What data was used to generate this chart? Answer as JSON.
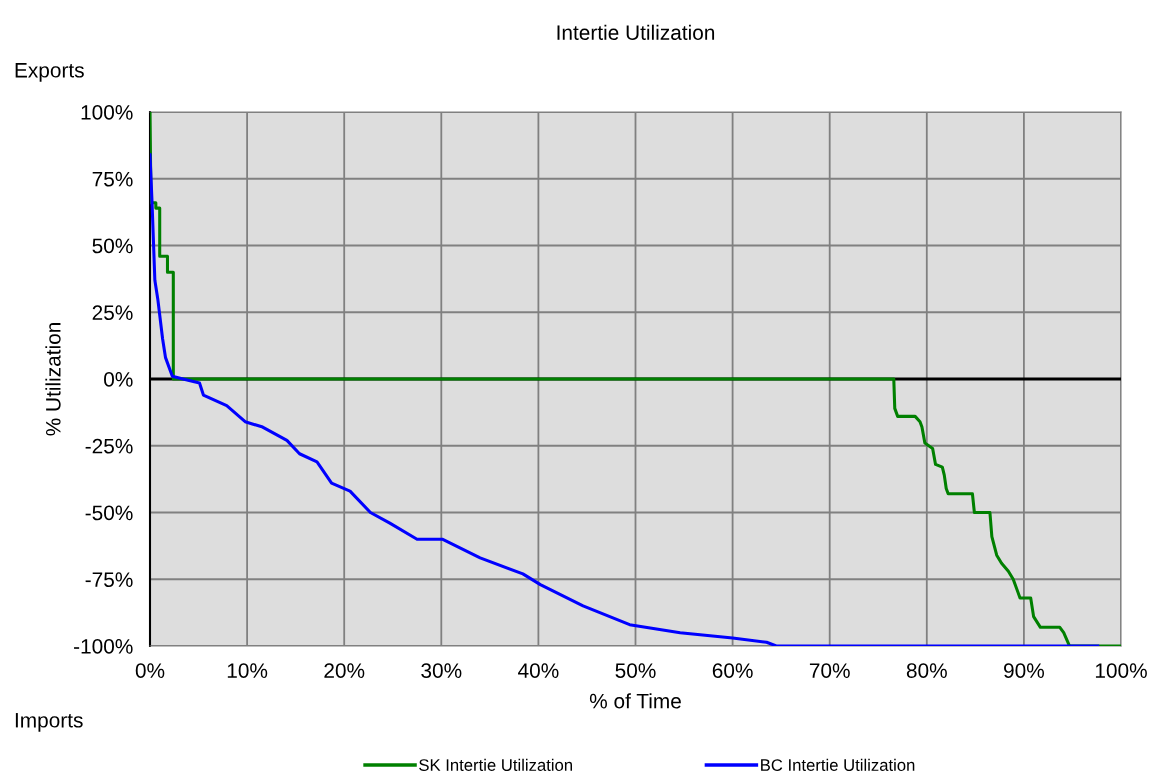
{
  "chart_data": {
    "type": "line",
    "title": "Intertie Utilization",
    "xlabel": "% of Time",
    "ylabel": "% Utilization",
    "annotations": [
      "Exports",
      "Imports"
    ],
    "xlim": [
      0,
      100
    ],
    "ylim": [
      -100,
      100
    ],
    "xticks": [
      {
        "value": 0,
        "label": "0%"
      },
      {
        "value": 10,
        "label": "10%"
      },
      {
        "value": 20,
        "label": "20%"
      },
      {
        "value": 30,
        "label": "30%"
      },
      {
        "value": 40,
        "label": "40%"
      },
      {
        "value": 50,
        "label": "50%"
      },
      {
        "value": 60,
        "label": "60%"
      },
      {
        "value": 70,
        "label": "70%"
      },
      {
        "value": 80,
        "label": "80%"
      },
      {
        "value": 90,
        "label": "90%"
      },
      {
        "value": 100,
        "label": "100%"
      }
    ],
    "yticks": [
      {
        "value": -100,
        "label": "-100%"
      },
      {
        "value": -75,
        "label": "-75%"
      },
      {
        "value": -50,
        "label": "-50%"
      },
      {
        "value": -25,
        "label": "-25%"
      },
      {
        "value": 0,
        "label": "0%"
      },
      {
        "value": 25,
        "label": "25%"
      },
      {
        "value": 50,
        "label": "50%"
      },
      {
        "value": 75,
        "label": "75%"
      },
      {
        "value": 100,
        "label": "100%"
      }
    ],
    "grid": true,
    "legend": "bottom",
    "ref_lines": [
      {
        "axis": "y",
        "value": 0,
        "color": "#000000"
      }
    ],
    "series": [
      {
        "name": "SK Intertie Utilization",
        "color": "#008000",
        "x": [
          0,
          0.1,
          0.6,
          0.6,
          1.0,
          1.0,
          1.8,
          1.8,
          2.4,
          2.4,
          76.6,
          76.7,
          77.0,
          78.8,
          79.3,
          79.5,
          79.8,
          80.6,
          80.9,
          81.6,
          81.8,
          82.0,
          82.2,
          84.7,
          84.9,
          86.5,
          86.7,
          87.2,
          87.7,
          88.4,
          88.9,
          89.6,
          90.7,
          91.0,
          91.7,
          93.7,
          94.1,
          94.7,
          100
        ],
        "values": [
          100,
          66,
          66,
          64,
          64,
          46,
          46,
          40,
          40,
          0,
          0,
          -11,
          -14,
          -14,
          -16,
          -18,
          -24,
          -26,
          -32,
          -33,
          -36,
          -41,
          -43,
          -43,
          -50,
          -50,
          -59,
          -66,
          -69,
          -72,
          -75,
          -82,
          -82,
          -89,
          -93,
          -93,
          -95,
          -100,
          -100
        ]
      },
      {
        "name": "BC Intertie Utilization",
        "color": "#0000ff",
        "x": [
          0,
          0.2,
          0.5,
          0.8,
          1.3,
          1.6,
          2.3,
          3.4,
          5.1,
          5.5,
          7.9,
          9.8,
          11.6,
          14.1,
          15.4,
          17.2,
          18.7,
          20.6,
          22.7,
          24.7,
          27.5,
          30.1,
          34.0,
          38.4,
          40.2,
          44.6,
          49.4,
          54.6,
          60.0,
          63.5,
          64.5,
          97.6
        ],
        "values": [
          84,
          67,
          37,
          30,
          15,
          8,
          1,
          0,
          -1.5,
          -6,
          -10,
          -16,
          -18,
          -23,
          -28,
          -31,
          -39,
          -42,
          -50,
          -54,
          -60,
          -60,
          -67,
          -73,
          -77,
          -85,
          -92,
          -95,
          -97,
          -98.6,
          -100,
          -100
        ]
      }
    ]
  }
}
